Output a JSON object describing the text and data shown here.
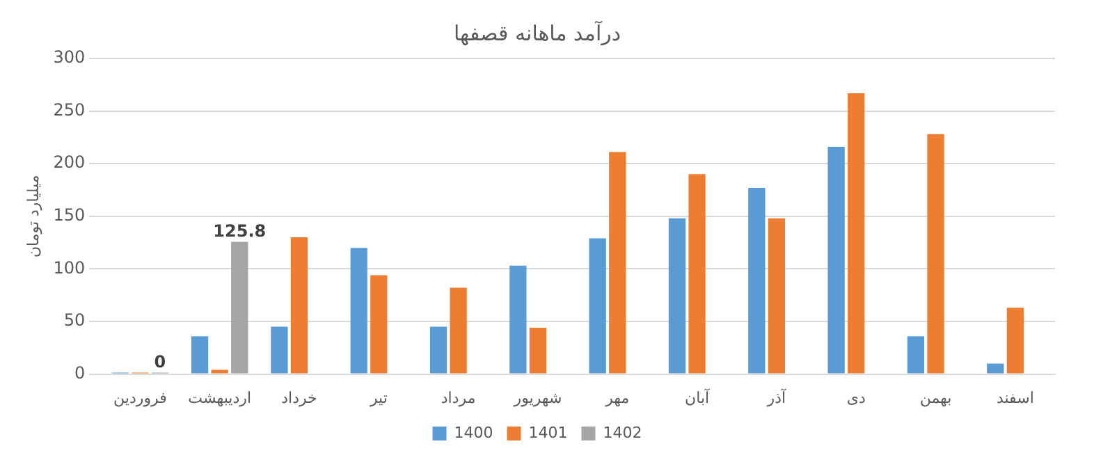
{
  "chart_data": {
    "type": "bar",
    "title": "درآمد ماهانه قصفها",
    "ylabel": "میلیارد تومان",
    "categories": [
      "فروردین",
      "اردیبهشت",
      "خرداد",
      "تیر",
      "مرداد",
      "شهریور",
      "مهر",
      "آبان",
      "آذر",
      "دی",
      "بهمن",
      "اسفند"
    ],
    "series": [
      {
        "name": "1400",
        "color": "#5b9bd5",
        "values": [
          1,
          36,
          45,
          120,
          45,
          103,
          129,
          148,
          177,
          216,
          36,
          10
        ]
      },
      {
        "name": "1401",
        "color": "#ed7d31",
        "values": [
          1,
          4,
          130,
          94,
          82,
          44,
          211,
          190,
          148,
          267,
          228,
          63
        ]
      },
      {
        "name": "1402",
        "color": "#a5a5a5",
        "values": [
          0,
          125.8,
          null,
          null,
          null,
          null,
          null,
          null,
          null,
          null,
          null,
          null
        ],
        "value_labels": [
          "0",
          "125.8",
          null,
          null,
          null,
          null,
          null,
          null,
          null,
          null,
          null,
          null
        ]
      }
    ],
    "ylim": [
      0,
      300
    ],
    "yticks": [
      0,
      50,
      100,
      150,
      200,
      250,
      300
    ],
    "grid": "y",
    "legend": "bottom"
  }
}
